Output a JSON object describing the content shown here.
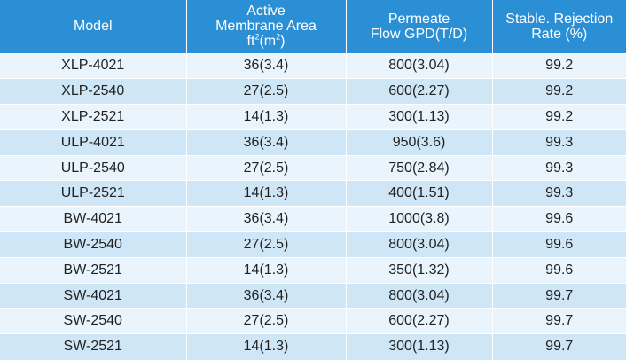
{
  "header": {
    "model": "Model",
    "area_line1": "Active",
    "area_line2": "Membrane Area",
    "area_unit_a": "ft",
    "area_unit_sup_a": "2",
    "area_unit_b": "(m",
    "area_unit_sup_b": "2",
    "area_unit_c": ")",
    "flow_line1": "Permeate",
    "flow_line2": "Flow GPD(T/D)",
    "rejection_line1": "Stable. Rejection",
    "rejection_line2": "Rate (%)"
  },
  "rows": [
    {
      "model": "XLP-4021",
      "area": "36(3.4)",
      "flow": "800(3.04)",
      "rejection": "99.2"
    },
    {
      "model": "XLP-2540",
      "area": "27(2.5)",
      "flow": "600(2.27)",
      "rejection": "99.2"
    },
    {
      "model": "XLP-2521",
      "area": "14(1.3)",
      "flow": "300(1.13)",
      "rejection": "99.2"
    },
    {
      "model": "ULP-4021",
      "area": "36(3.4)",
      "flow": "950(3.6)",
      "rejection": "99.3"
    },
    {
      "model": "ULP-2540",
      "area": "27(2.5)",
      "flow": "750(2.84)",
      "rejection": "99.3"
    },
    {
      "model": "ULP-2521",
      "area": "14(1.3)",
      "flow": "400(1.51)",
      "rejection": "99.3"
    },
    {
      "model": "BW-4021",
      "area": "36(3.4)",
      "flow": "1000(3.8)",
      "rejection": "99.6"
    },
    {
      "model": "BW-2540",
      "area": "27(2.5)",
      "flow": "800(3.04)",
      "rejection": "99.6"
    },
    {
      "model": "BW-2521",
      "area": "14(1.3)",
      "flow": "350(1.32)",
      "rejection": "99.6"
    },
    {
      "model": "SW-4021",
      "area": "36(3.4)",
      "flow": "800(3.04)",
      "rejection": "99.7"
    },
    {
      "model": "SW-2540",
      "area": "27(2.5)",
      "flow": "600(2.27)",
      "rejection": "99.7"
    },
    {
      "model": "SW-2521",
      "area": "14(1.3)",
      "flow": "300(1.13)",
      "rejection": "99.7"
    }
  ]
}
